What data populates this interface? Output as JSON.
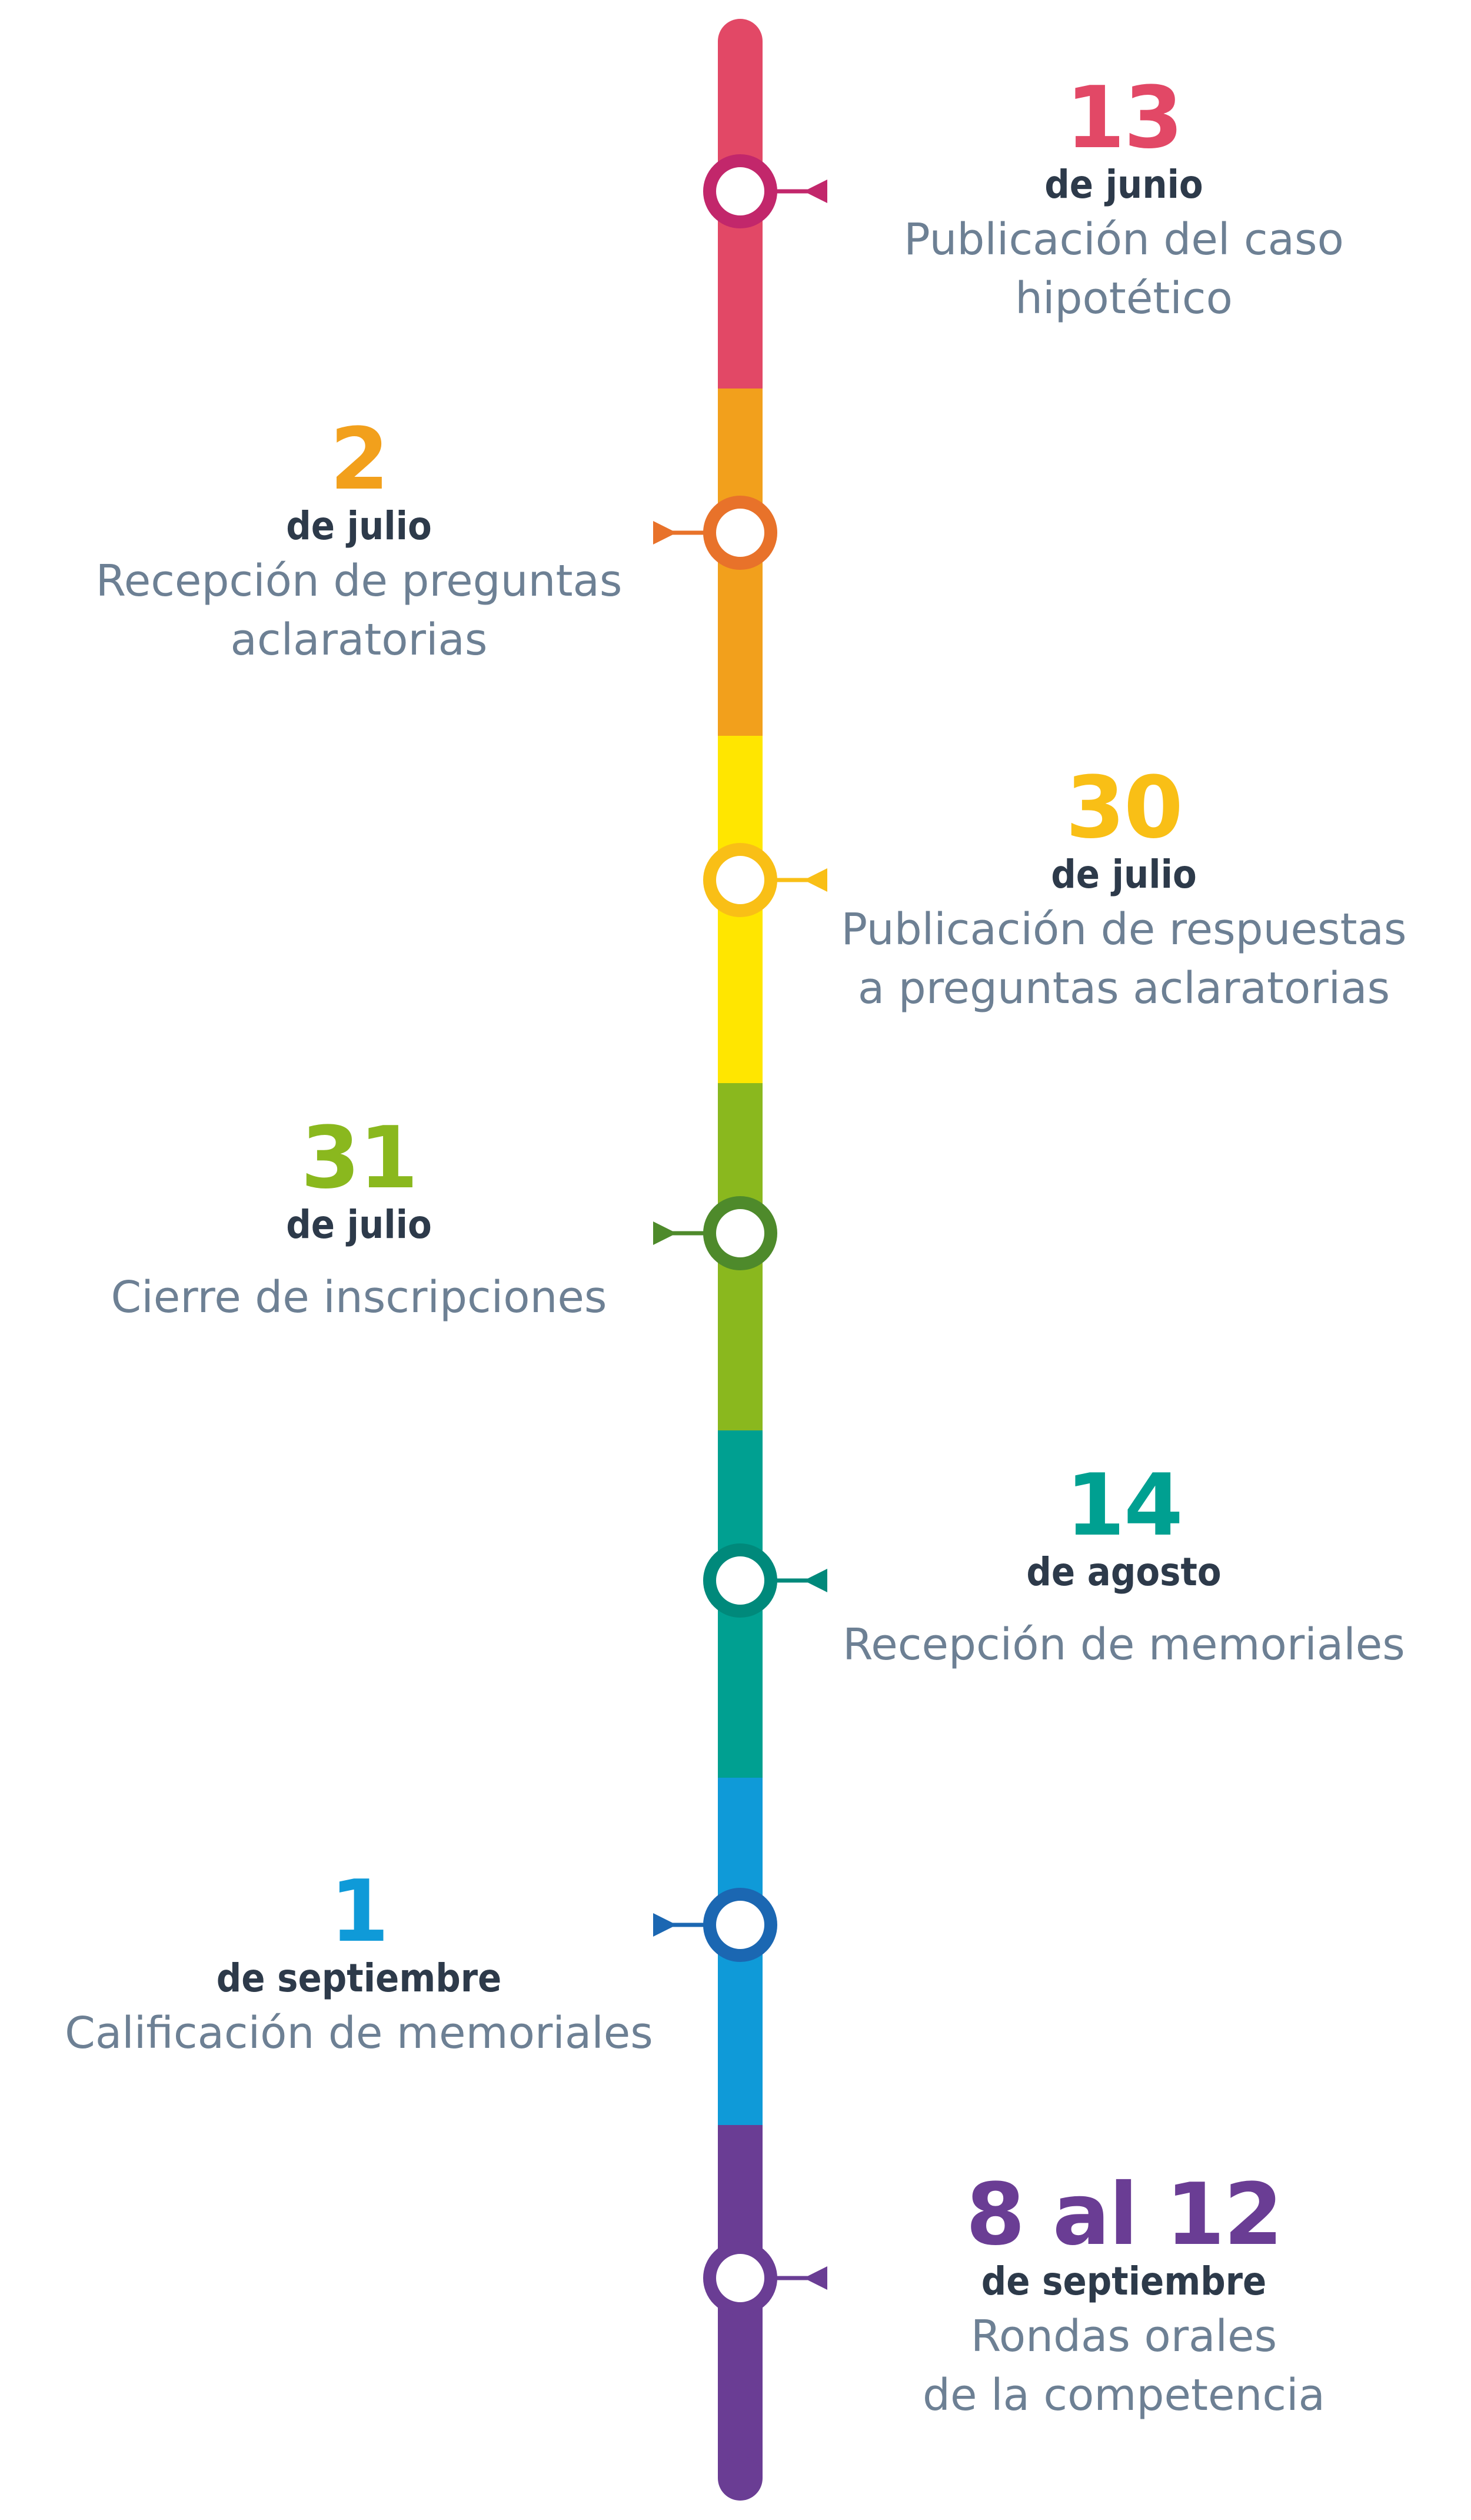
{
  "timeline": {
    "events": [
      {
        "number": "13",
        "month": "de junio",
        "description": [
          "Publicación del caso hipotético"
        ],
        "side": "right",
        "color": "#e24866",
        "node_color": "#c2276b"
      },
      {
        "number": "2",
        "month": "de julio",
        "description": [
          "Recepción de preguntas",
          "aclaratorias"
        ],
        "side": "left",
        "color": "#f2a01c",
        "node_color": "#e8722a"
      },
      {
        "number": "30",
        "month": "de julio",
        "description": [
          "Publicación de respuestas",
          "a preguntas aclaratorias"
        ],
        "side": "right",
        "color": "#ffe600",
        "number_color": "#f9bf16",
        "node_color": "#f9bf16"
      },
      {
        "number": "31",
        "month": "de julio",
        "description": [
          "Cierre de inscripciones"
        ],
        "side": "left",
        "color": "#8ab81e",
        "node_color": "#4e8a2b"
      },
      {
        "number": "14",
        "month": "de agosto",
        "description": [
          "Recepción de memoriales"
        ],
        "side": "right",
        "color": "#00a091",
        "node_color": "#00897b"
      },
      {
        "number": "1",
        "month": "de septiembre",
        "description": [
          "Calificación de memoriales"
        ],
        "side": "left",
        "color": "#0f9ad8",
        "node_color": "#1b67b2"
      },
      {
        "number": "8 al 12",
        "month": "de septiembre",
        "description": [
          "Rondas orales",
          "de la competencia"
        ],
        "side": "right",
        "color": "#6a3d94",
        "node_color": "#6a3d94"
      }
    ]
  }
}
